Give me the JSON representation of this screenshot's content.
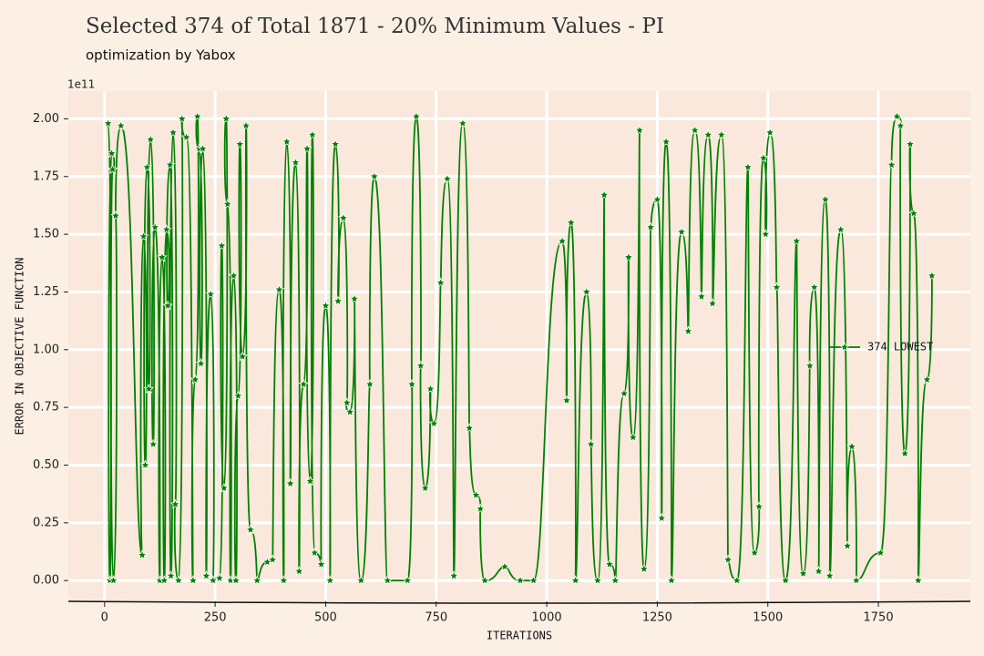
{
  "chart_data": {
    "type": "line",
    "title": "Selected 374 of Total 1871  - 20% Minimum Values - PI",
    "subtitle": "optimization by Yabox",
    "x_label": "ITERATIONS",
    "y_label": "ERROR IN OBJECTIVE FUNCTION",
    "y_offset_label": "1e11",
    "legend_position": "right",
    "grid": true,
    "xlim": [
      -82,
      1958
    ],
    "ylim": [
      -0.09,
      2.12
    ],
    "xticks": [
      0,
      250,
      500,
      750,
      1000,
      1250,
      1500,
      1750
    ],
    "yticks": [
      {
        "value": 0,
        "label": "0.00"
      },
      {
        "value": 0.25,
        "label": "0.25"
      },
      {
        "value": 0.5,
        "label": "0.50"
      },
      {
        "value": 0.75,
        "label": "0.75"
      },
      {
        "value": 1,
        "label": "1.00"
      },
      {
        "value": 1.25,
        "label": "1.25"
      },
      {
        "value": 1.5,
        "label": "1.50"
      },
      {
        "value": 1.75,
        "label": "1.75"
      },
      {
        "value": 2,
        "label": "2.00"
      }
    ],
    "series": [
      {
        "name": "374 LOWEST",
        "color": "#008000",
        "x": [
          8,
          12,
          16,
          18,
          20,
          25,
          37,
          85,
          88,
          92,
          96,
          100,
          104,
          110,
          114,
          125,
          130,
          135,
          140,
          143,
          148,
          150,
          155,
          160,
          167,
          175,
          185,
          200,
          205,
          210,
          214,
          218,
          222,
          230,
          240,
          245,
          260,
          265,
          270,
          275,
          278,
          285,
          292,
          297,
          302,
          306,
          312,
          320,
          330,
          345,
          368,
          380,
          395,
          405,
          412,
          420,
          432,
          440,
          450,
          458,
          465,
          470,
          475,
          490,
          500,
          510,
          522,
          528,
          540,
          548,
          555,
          565,
          580,
          600,
          610,
          640,
          685,
          695,
          705,
          715,
          725,
          737,
          745,
          760,
          775,
          790,
          810,
          825,
          840,
          850,
          860,
          905,
          940,
          970,
          1035,
          1045,
          1055,
          1065,
          1090,
          1100,
          1115,
          1130,
          1142,
          1155,
          1175,
          1185,
          1195,
          1210,
          1220,
          1235,
          1250,
          1260,
          1270,
          1282,
          1305,
          1320,
          1335,
          1350,
          1365,
          1375,
          1395,
          1410,
          1430,
          1455,
          1470,
          1480,
          1490,
          1495,
          1505,
          1520,
          1540,
          1565,
          1580,
          1595,
          1605,
          1615,
          1630,
          1640,
          1665,
          1680,
          1690,
          1700,
          1755,
          1780,
          1792,
          1800,
          1810,
          1822,
          1830,
          1840,
          1860,
          1871
        ],
        "values": [
          1.98,
          0,
          1.85,
          1.78,
          0,
          1.58,
          1.97,
          0.11,
          1.49,
          0.5,
          1.79,
          0.83,
          1.91,
          0.59,
          1.53,
          0,
          1.4,
          0,
          1.52,
          1.19,
          1.8,
          0.02,
          1.94,
          0.33,
          0,
          2.0,
          1.92,
          0,
          0.87,
          2.01,
          1.87,
          0.94,
          1.87,
          0.02,
          1.24,
          0,
          0.01,
          1.45,
          0.4,
          2.0,
          1.63,
          0,
          1.32,
          0,
          0.8,
          1.89,
          0.97,
          1.97,
          0.22,
          0,
          0.08,
          0.09,
          1.26,
          0,
          1.9,
          0.42,
          1.81,
          0.04,
          0.85,
          1.87,
          0.43,
          1.93,
          0.12,
          0.07,
          1.19,
          0,
          1.89,
          1.21,
          1.57,
          0.77,
          0.73,
          1.22,
          0,
          0.85,
          1.75,
          0,
          0,
          0.85,
          2.01,
          0.93,
          0.4,
          0.83,
          0.68,
          1.29,
          1.74,
          0.02,
          1.98,
          0.66,
          0.37,
          0.31,
          0,
          0.06,
          0,
          0,
          1.47,
          0.78,
          1.55,
          0,
          1.25,
          0.59,
          0,
          1.67,
          0.07,
          0,
          0.81,
          1.4,
          0.62,
          1.95,
          0.05,
          1.53,
          1.65,
          0.27,
          1.9,
          0,
          1.51,
          1.08,
          1.95,
          1.23,
          1.93,
          1.2,
          1.93,
          0.09,
          0,
          1.79,
          0.12,
          0.32,
          1.83,
          1.5,
          1.94,
          1.27,
          0,
          1.47,
          0.03,
          0.93,
          1.27,
          0.04,
          1.65,
          0.02,
          1.52,
          0.15,
          0.58,
          0,
          0.12,
          1.8,
          2.01,
          1.97,
          0.55,
          1.89,
          1.59,
          0,
          0.87,
          1.32
        ]
      }
    ]
  }
}
